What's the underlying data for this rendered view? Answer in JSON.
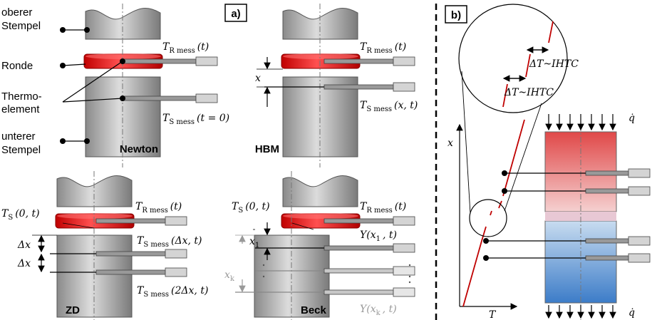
{
  "panel_a": {
    "label": "a)",
    "side_labels": [
      [
        "oberer",
        "Stempel"
      ],
      [
        "Ronde"
      ],
      [
        "Thermo-",
        "element"
      ],
      [
        "unterer",
        "Stempel"
      ]
    ],
    "newton": {
      "name": "Newton",
      "t_r": {
        "sym": "T",
        "sub": "R mess",
        "arg": "(t)"
      },
      "t_s": {
        "sym": "T",
        "sub": "S mess",
        "arg": "(t = 0)"
      }
    },
    "hbm": {
      "name": "HBM",
      "t_r": {
        "sym": "T",
        "sub": "R mess",
        "arg": "(t)"
      },
      "x": "x",
      "t_s": {
        "sym": "T",
        "sub": "S mess",
        "arg": "(x, t)"
      }
    },
    "zd": {
      "name": "ZD",
      "t_s0": {
        "sym": "T",
        "sub": "S",
        "arg": "(0, t)"
      },
      "t_r": {
        "sym": "T",
        "sub": "R mess",
        "arg": "(t)"
      },
      "dx": [
        "Δx",
        "Δx"
      ],
      "t_s1": {
        "sym": "T",
        "sub": "S mess",
        "arg": "(Δx, t)"
      },
      "t_s2": {
        "sym": "T",
        "sub": "S mess",
        "arg": "(2Δx, t)"
      }
    },
    "beck": {
      "name": "Beck",
      "t_s0": {
        "sym": "T",
        "sub": "S",
        "arg": "(0, t)"
      },
      "t_r": {
        "sym": "T",
        "sub": "R mess",
        "arg": "(t)"
      },
      "x1": {
        "sym": "x",
        "sub": "1",
        "arg": ""
      },
      "y1": {
        "sym": "Y(x",
        "sub": "1",
        "arg": ", t)"
      },
      "xk": {
        "sym": "x",
        "sub": "k",
        "arg": ""
      },
      "yk": {
        "sym": "Y(x",
        "sub": "k",
        "arg": ", t)"
      }
    }
  },
  "panel_b": {
    "label": "b)",
    "ihtc": [
      "ΔT~IHTC",
      "ΔT~IHTC"
    ],
    "x_axis": "T",
    "y_axis": "x",
    "heat_flux": [
      "q̇",
      "q̇"
    ]
  }
}
